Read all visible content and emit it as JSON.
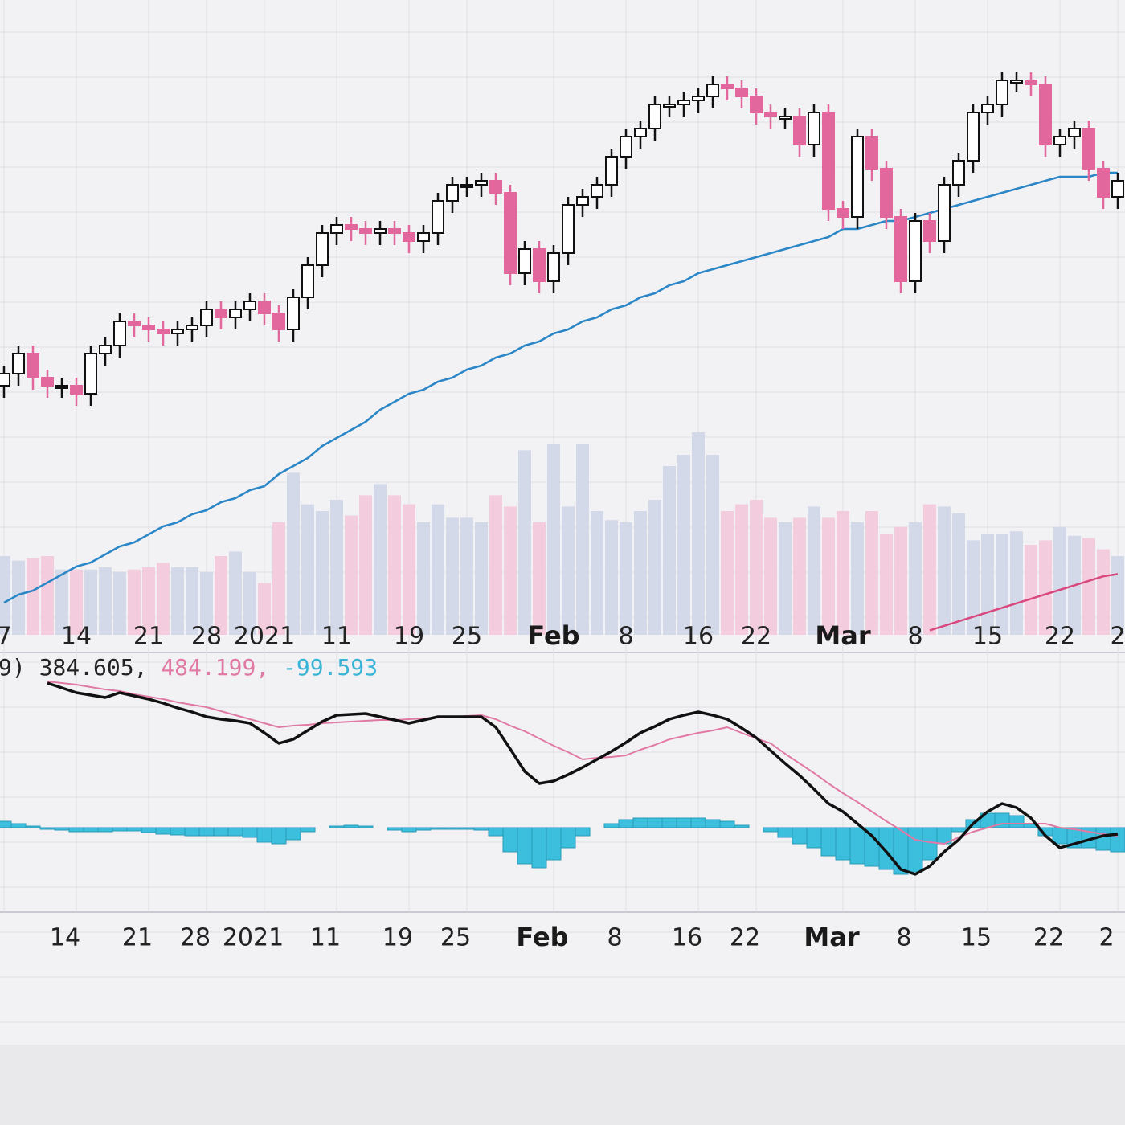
{
  "chart_data": {
    "type": "candlestick",
    "categories": [
      "7",
      null,
      null,
      null,
      null,
      "14",
      null,
      null,
      null,
      null,
      "21",
      null,
      null,
      null,
      "28",
      null,
      null,
      null,
      "2021",
      null,
      null,
      null,
      null,
      "11",
      null,
      null,
      null,
      null,
      "19",
      null,
      null,
      null,
      "25",
      null,
      null,
      null,
      null,
      null,
      "Feb",
      null,
      null,
      null,
      null,
      "8",
      null,
      null,
      null,
      null,
      "16",
      null,
      null,
      null,
      "22",
      null,
      null,
      null,
      null,
      null,
      "Mar",
      null,
      null,
      null,
      null,
      "8",
      null,
      null,
      null,
      null,
      "15",
      null,
      null,
      null,
      null,
      "22",
      null,
      null,
      null,
      "2"
    ],
    "open": [
      24,
      27,
      32,
      26,
      24,
      24,
      22,
      32,
      34,
      40,
      39,
      38,
      37,
      38,
      39,
      43,
      41,
      43,
      45,
      42,
      38,
      46,
      54,
      62,
      64,
      63,
      62,
      63,
      62,
      60,
      62,
      70,
      74,
      74,
      75,
      72,
      52,
      58,
      50,
      57,
      69,
      71,
      74,
      81,
      86,
      88,
      94,
      94,
      95,
      96,
      99,
      98,
      96,
      92,
      91,
      91,
      84,
      92,
      68,
      66,
      86,
      78,
      66,
      50,
      65,
      60,
      74,
      80,
      92,
      94,
      100,
      100,
      99,
      84,
      86,
      88,
      78,
      71
    ],
    "high": [
      29,
      34,
      34,
      28,
      26,
      26,
      34,
      36,
      42,
      42,
      41,
      40,
      40,
      41,
      45,
      45,
      45,
      47,
      47,
      44,
      48,
      56,
      64,
      66,
      66,
      65,
      65,
      65,
      64,
      64,
      72,
      76,
      76,
      77,
      77,
      74,
      60,
      60,
      59,
      71,
      73,
      76,
      83,
      88,
      90,
      96,
      96,
      97,
      98,
      101,
      101,
      100,
      98,
      94,
      93,
      93,
      94,
      94,
      70,
      88,
      88,
      80,
      68,
      67,
      67,
      76,
      82,
      94,
      96,
      102,
      102,
      102,
      101,
      88,
      90,
      90,
      80,
      77
    ],
    "low": [
      21,
      24,
      23,
      21,
      21,
      19,
      19,
      29,
      31,
      36,
      35,
      34,
      34,
      35,
      36,
      38,
      38,
      40,
      39,
      35,
      35,
      43,
      51,
      59,
      60,
      59,
      59,
      59,
      57,
      57,
      59,
      67,
      71,
      71,
      69,
      49,
      49,
      47,
      47,
      54,
      66,
      68,
      71,
      78,
      83,
      85,
      91,
      91,
      92,
      93,
      95,
      93,
      89,
      88,
      88,
      81,
      81,
      65,
      63,
      63,
      75,
      63,
      47,
      47,
      57,
      57,
      71,
      77,
      89,
      91,
      97,
      96,
      81,
      81,
      83,
      75,
      68,
      68
    ],
    "close": [
      27,
      32,
      26,
      24,
      24,
      22,
      32,
      34,
      40,
      39,
      38,
      37,
      38,
      39,
      43,
      41,
      43,
      45,
      42,
      38,
      46,
      54,
      62,
      64,
      63,
      62,
      63,
      62,
      60,
      62,
      70,
      74,
      74,
      75,
      72,
      52,
      58,
      50,
      57,
      69,
      71,
      74,
      81,
      86,
      88,
      94,
      94,
      95,
      96,
      99,
      98,
      96,
      92,
      91,
      91,
      84,
      92,
      68,
      66,
      86,
      78,
      66,
      50,
      65,
      60,
      74,
      80,
      92,
      94,
      100,
      100,
      99,
      84,
      86,
      88,
      78,
      71,
      75
    ],
    "ylim": [
      -32,
      120
    ],
    "up_color": "#ffffff",
    "down_color": "#e2679c",
    "outline_color": "#111111",
    "moving_average": {
      "color": "#2a86c6",
      "values": [
        -30,
        -28,
        -27,
        -25,
        -23,
        -21,
        -20,
        -18,
        -16,
        -15,
        -13,
        -11,
        -10,
        -8,
        -7,
        -5,
        -4,
        -2,
        -1,
        2,
        4,
        6,
        9,
        11,
        13,
        15,
        18,
        20,
        22,
        23,
        25,
        26,
        28,
        29,
        31,
        32,
        34,
        35,
        37,
        38,
        40,
        41,
        43,
        44,
        46,
        47,
        49,
        50,
        52,
        53,
        54,
        55,
        56,
        57,
        58,
        59,
        60,
        61,
        63,
        63,
        64,
        65,
        65,
        66,
        67,
        68,
        69,
        70,
        71,
        72,
        73,
        74,
        75,
        76,
        76,
        76,
        77,
        77
      ]
    },
    "volume": {
      "ylim": [
        0,
        100
      ],
      "up_color": "#d3d9e8",
      "down_color": "#f3cddd",
      "values": [
        35,
        33,
        34,
        35,
        29,
        29,
        29,
        30,
        28,
        29,
        30,
        32,
        30,
        30,
        28,
        35,
        37,
        28,
        23,
        50,
        72,
        58,
        55,
        60,
        53,
        62,
        67,
        62,
        58,
        50,
        58,
        52,
        52,
        50,
        62,
        57,
        82,
        50,
        85,
        57,
        85,
        55,
        51,
        50,
        55,
        60,
        75,
        80,
        90,
        80,
        55,
        58,
        60,
        52,
        50,
        52,
        57,
        52,
        55,
        50,
        55,
        45,
        48,
        50,
        58,
        57,
        54,
        42,
        45,
        45,
        46,
        40,
        42,
        48,
        44,
        43,
        38,
        35
      ],
      "average": {
        "color": "#d9477f",
        "values": [
          null,
          null,
          null,
          null,
          null,
          null,
          null,
          null,
          null,
          null,
          null,
          null,
          null,
          null,
          null,
          null,
          null,
          null,
          null,
          null,
          null,
          null,
          null,
          null,
          null,
          null,
          null,
          null,
          null,
          null,
          null,
          null,
          null,
          null,
          null,
          null,
          null,
          null,
          null,
          null,
          null,
          null,
          null,
          null,
          null,
          null,
          null,
          null,
          null,
          null,
          null,
          null,
          null,
          null,
          null,
          null,
          null,
          null,
          null,
          null,
          null,
          null,
          null,
          null,
          2,
          4,
          6,
          8,
          10,
          12,
          14,
          16,
          18,
          20,
          22,
          24,
          26,
          27
        ]
      }
    },
    "macd": {
      "ylim": [
        -100,
        210
      ],
      "readout": [
        "9) 384.605,",
        "484.199,",
        "-99.593"
      ],
      "readout_colors": [
        "#222222",
        "#e07aa5",
        "#3ab4d6"
      ],
      "series": [
        {
          "color": "#111111",
          "values": [
            null,
            null,
            null,
            180,
            174,
            168,
            165,
            162,
            168,
            164,
            160,
            155,
            149,
            144,
            138,
            135,
            133,
            130,
            118,
            105,
            110,
            121,
            132,
            140,
            141,
            142,
            138,
            134,
            130,
            134,
            138,
            138,
            138,
            138,
            125,
            98,
            70,
            55,
            58,
            66,
            75,
            85,
            95,
            106,
            118,
            126,
            135,
            140,
            144,
            140,
            135,
            124,
            112,
            96,
            80,
            65,
            48,
            30,
            20,
            5,
            -10,
            -30,
            -52,
            -58,
            -48,
            -30,
            -15,
            5,
            20,
            30,
            25,
            12,
            -10,
            -25,
            -20,
            -15,
            -10,
            -8
          ]
        },
        {
          "color": "#e07aa5",
          "values": [
            null,
            null,
            null,
            182,
            180,
            178,
            175,
            172,
            170,
            166,
            163,
            160,
            156,
            153,
            150,
            145,
            140,
            135,
            130,
            125,
            127,
            128,
            130,
            131,
            132,
            133,
            134,
            134,
            135,
            136,
            137,
            138,
            139,
            140,
            135,
            127,
            120,
            111,
            102,
            94,
            85,
            87,
            88,
            90,
            97,
            103,
            110,
            114,
            118,
            121,
            125,
            118,
            111,
            105,
            92,
            80,
            68,
            55,
            43,
            32,
            20,
            8,
            -3,
            -15,
            -18,
            -20,
            -12,
            -5,
            0,
            5,
            5,
            5,
            5,
            0,
            -2,
            -5,
            -8,
            -10
          ]
        }
      ],
      "histogram": {
        "color": "#3cbfdd",
        "values": [
          8,
          5,
          2,
          -2,
          -3,
          -5,
          -5,
          -5,
          -4,
          -4,
          -6,
          -8,
          -9,
          -10,
          -10,
          -10,
          -10,
          -12,
          -18,
          -20,
          -15,
          -5,
          0,
          2,
          3,
          2,
          0,
          -3,
          -5,
          -3,
          -2,
          -2,
          -2,
          -3,
          -10,
          -30,
          -45,
          -50,
          -40,
          -25,
          -10,
          0,
          5,
          10,
          12,
          12,
          12,
          12,
          12,
          10,
          8,
          3,
          0,
          -5,
          -12,
          -20,
          -25,
          -35,
          -40,
          -45,
          -48,
          -52,
          -58,
          -55,
          -40,
          -20,
          -5,
          10,
          18,
          18,
          15,
          5,
          -10,
          -20,
          -25,
          -25,
          -28,
          -30
        ]
      }
    }
  }
}
